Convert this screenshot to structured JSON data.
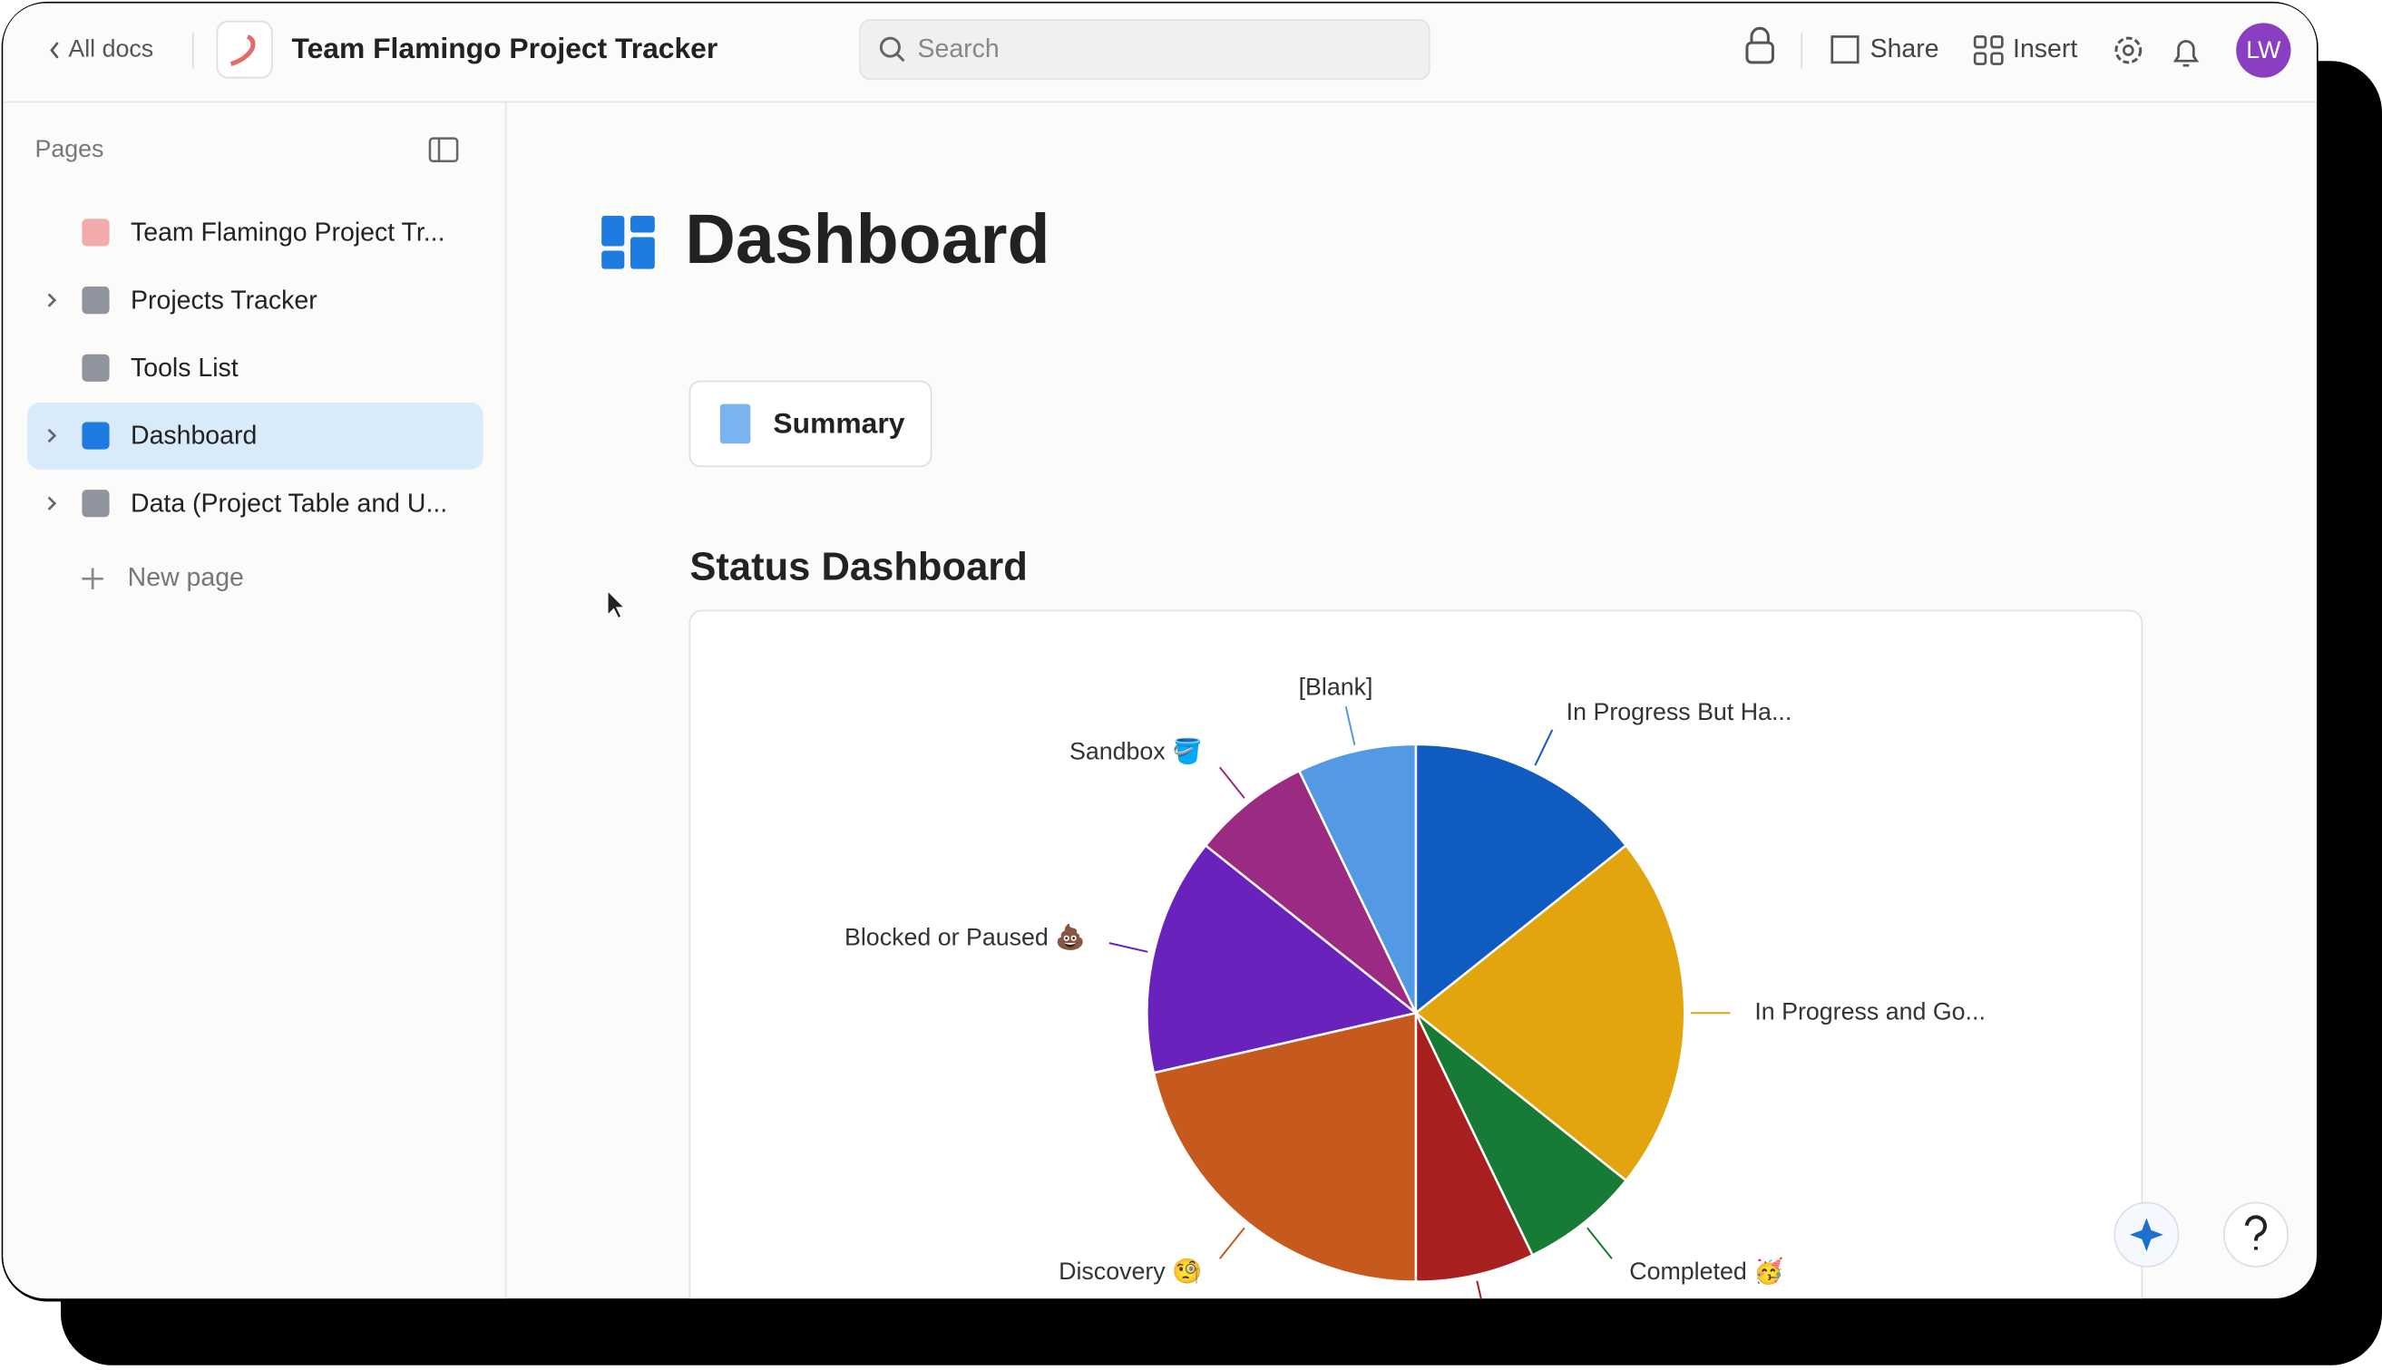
{
  "header": {
    "back": "All docs",
    "doc_title": "Team Flamingo Project Tracker",
    "search_placeholder": "Search",
    "share": "Share",
    "insert": "Insert",
    "avatar": "LW"
  },
  "sidebar": {
    "heading": "Pages",
    "pages": [
      "Team Flamingo Project Tr...",
      "Projects Tracker",
      "Tools List",
      "Dashboard",
      "Data (Project Table and U..."
    ],
    "new_page": "New page"
  },
  "page": {
    "title": "Dashboard",
    "summary_button": "Summary",
    "section_title": "Status Dashboard"
  },
  "chart_data": {
    "type": "pie",
    "categories": [
      "In Progress But Ha...",
      "In Progress and Go...",
      "Completed 🥳",
      null,
      "Discovery 🧐",
      "Blocked or Paused 💩",
      "Sandbox 🪣",
      "[Blank]"
    ],
    "values": [
      2,
      3,
      1,
      1,
      3,
      2,
      1,
      1
    ],
    "colors": [
      "#0f5bbf",
      "#e2a50d",
      "#177a35",
      "#a81f1f",
      "#c65a1e",
      "#6a22bc",
      "#9b2a82",
      "#5399e3"
    ]
  }
}
